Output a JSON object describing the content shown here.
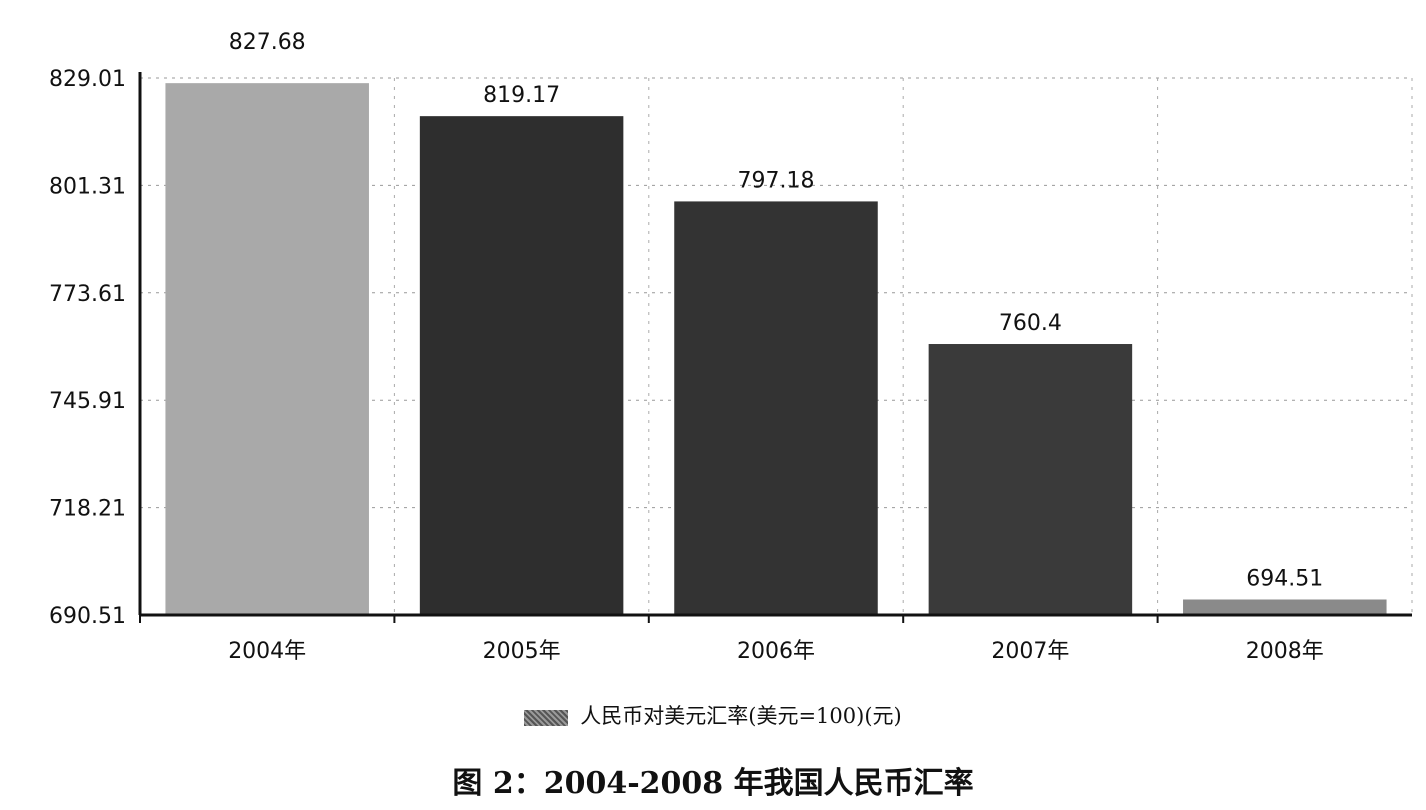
{
  "chart_data": {
    "type": "bar",
    "categories": [
      "2004年",
      "2005年",
      "2006年",
      "2007年",
      "2008年"
    ],
    "series": [
      {
        "name": "人民币对美元汇率(美元=100)(元)",
        "values": [
          827.68,
          819.17,
          797.18,
          760.4,
          694.51
        ],
        "labels": [
          "827.68",
          "819.17",
          "797.18",
          "760.4",
          "694.51"
        ]
      }
    ],
    "title": "图 2：2004-2008 年我国人民币汇率",
    "xlabel": "",
    "ylabel": "",
    "ylim": [
      690.51,
      829.01
    ],
    "yticks": [
      "829.01",
      "801.31",
      "773.61",
      "745.91",
      "718.21",
      "690.51"
    ],
    "grid": true,
    "legend": "bottom",
    "colors": [
      "#a9a9a9",
      "#2e2e2e",
      "#333333",
      "#3a3a3a",
      "#8a8a8a"
    ]
  }
}
